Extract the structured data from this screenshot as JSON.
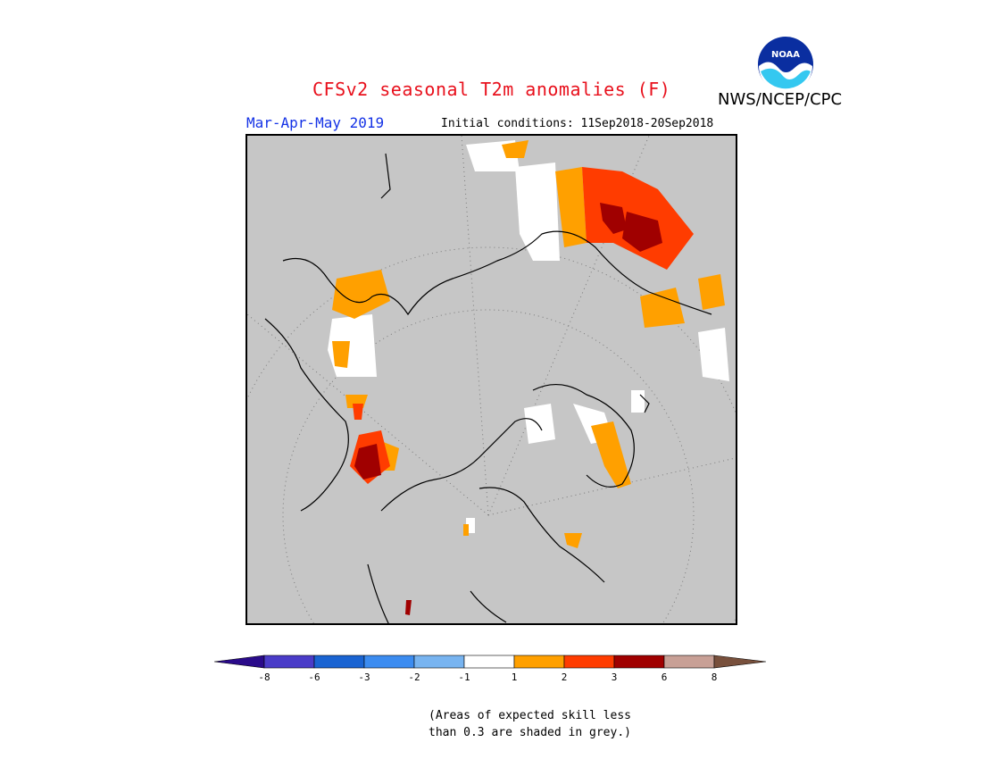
{
  "header": {
    "title": "CFSv2 seasonal T2m anomalies (F)",
    "agency": "NWS/NCEP/CPC",
    "logo_text": "NOAA",
    "period": "Mar-Apr-May 2019",
    "initial_conditions": "Initial conditions: 11Sep2018-20Sep2018"
  },
  "colorbar": {
    "ticks": [
      "-8",
      "-6",
      "-3",
      "-2",
      "-1",
      "1",
      "2",
      "3",
      "6",
      "8"
    ],
    "colors": [
      "#2a0b8a",
      "#4a3cc8",
      "#1a64d2",
      "#3c8cf0",
      "#78b4f0",
      "#ffffff",
      "#ffa000",
      "#ff3c00",
      "#a00000",
      "#c8a096",
      "#78503c"
    ]
  },
  "footnote": {
    "line1": "(Areas of expected skill less",
    "line2": "than 0.3 are shaded in grey.)"
  },
  "map": {
    "projection": "north-polar-stereographic",
    "background_color": "#c6c6c6"
  }
}
